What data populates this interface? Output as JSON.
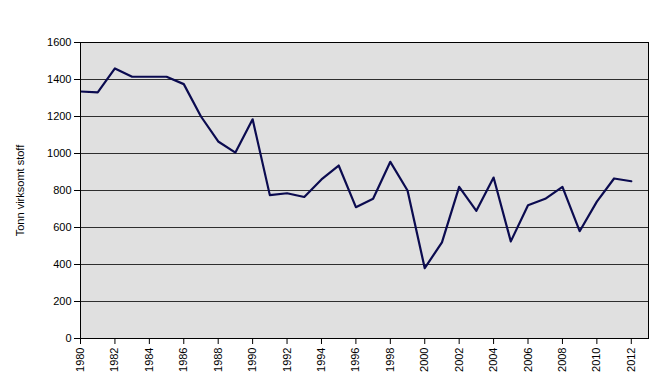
{
  "chart_data": {
    "type": "line",
    "y_label": "Tonn virksomt stoff",
    "x": [
      1980,
      1981,
      1982,
      1983,
      1984,
      1985,
      1986,
      1987,
      1988,
      1989,
      1990,
      1991,
      1992,
      1993,
      1994,
      1995,
      1996,
      1997,
      1998,
      1999,
      2000,
      2001,
      2002,
      2003,
      2004,
      2005,
      2006,
      2007,
      2008,
      2009,
      2010,
      2011,
      2012
    ],
    "values": [
      1335,
      1330,
      1460,
      1415,
      1415,
      1415,
      1375,
      1200,
      1065,
      1005,
      1185,
      775,
      785,
      765,
      860,
      935,
      710,
      755,
      955,
      800,
      380,
      520,
      820,
      690,
      870,
      525,
      720,
      755,
      820,
      580,
      740,
      865,
      850
    ],
    "color": "#0b0b50",
    "xlim": [
      1980,
      2013
    ],
    "ylim": [
      0,
      1600
    ],
    "xticks": [
      1980,
      1982,
      1984,
      1986,
      1988,
      1990,
      1992,
      1994,
      1996,
      1998,
      2000,
      2002,
      2004,
      2006,
      2008,
      2010,
      2012
    ],
    "yticks": [
      0,
      200,
      400,
      600,
      800,
      1000,
      1200,
      1400,
      1600
    ],
    "grid": true
  }
}
